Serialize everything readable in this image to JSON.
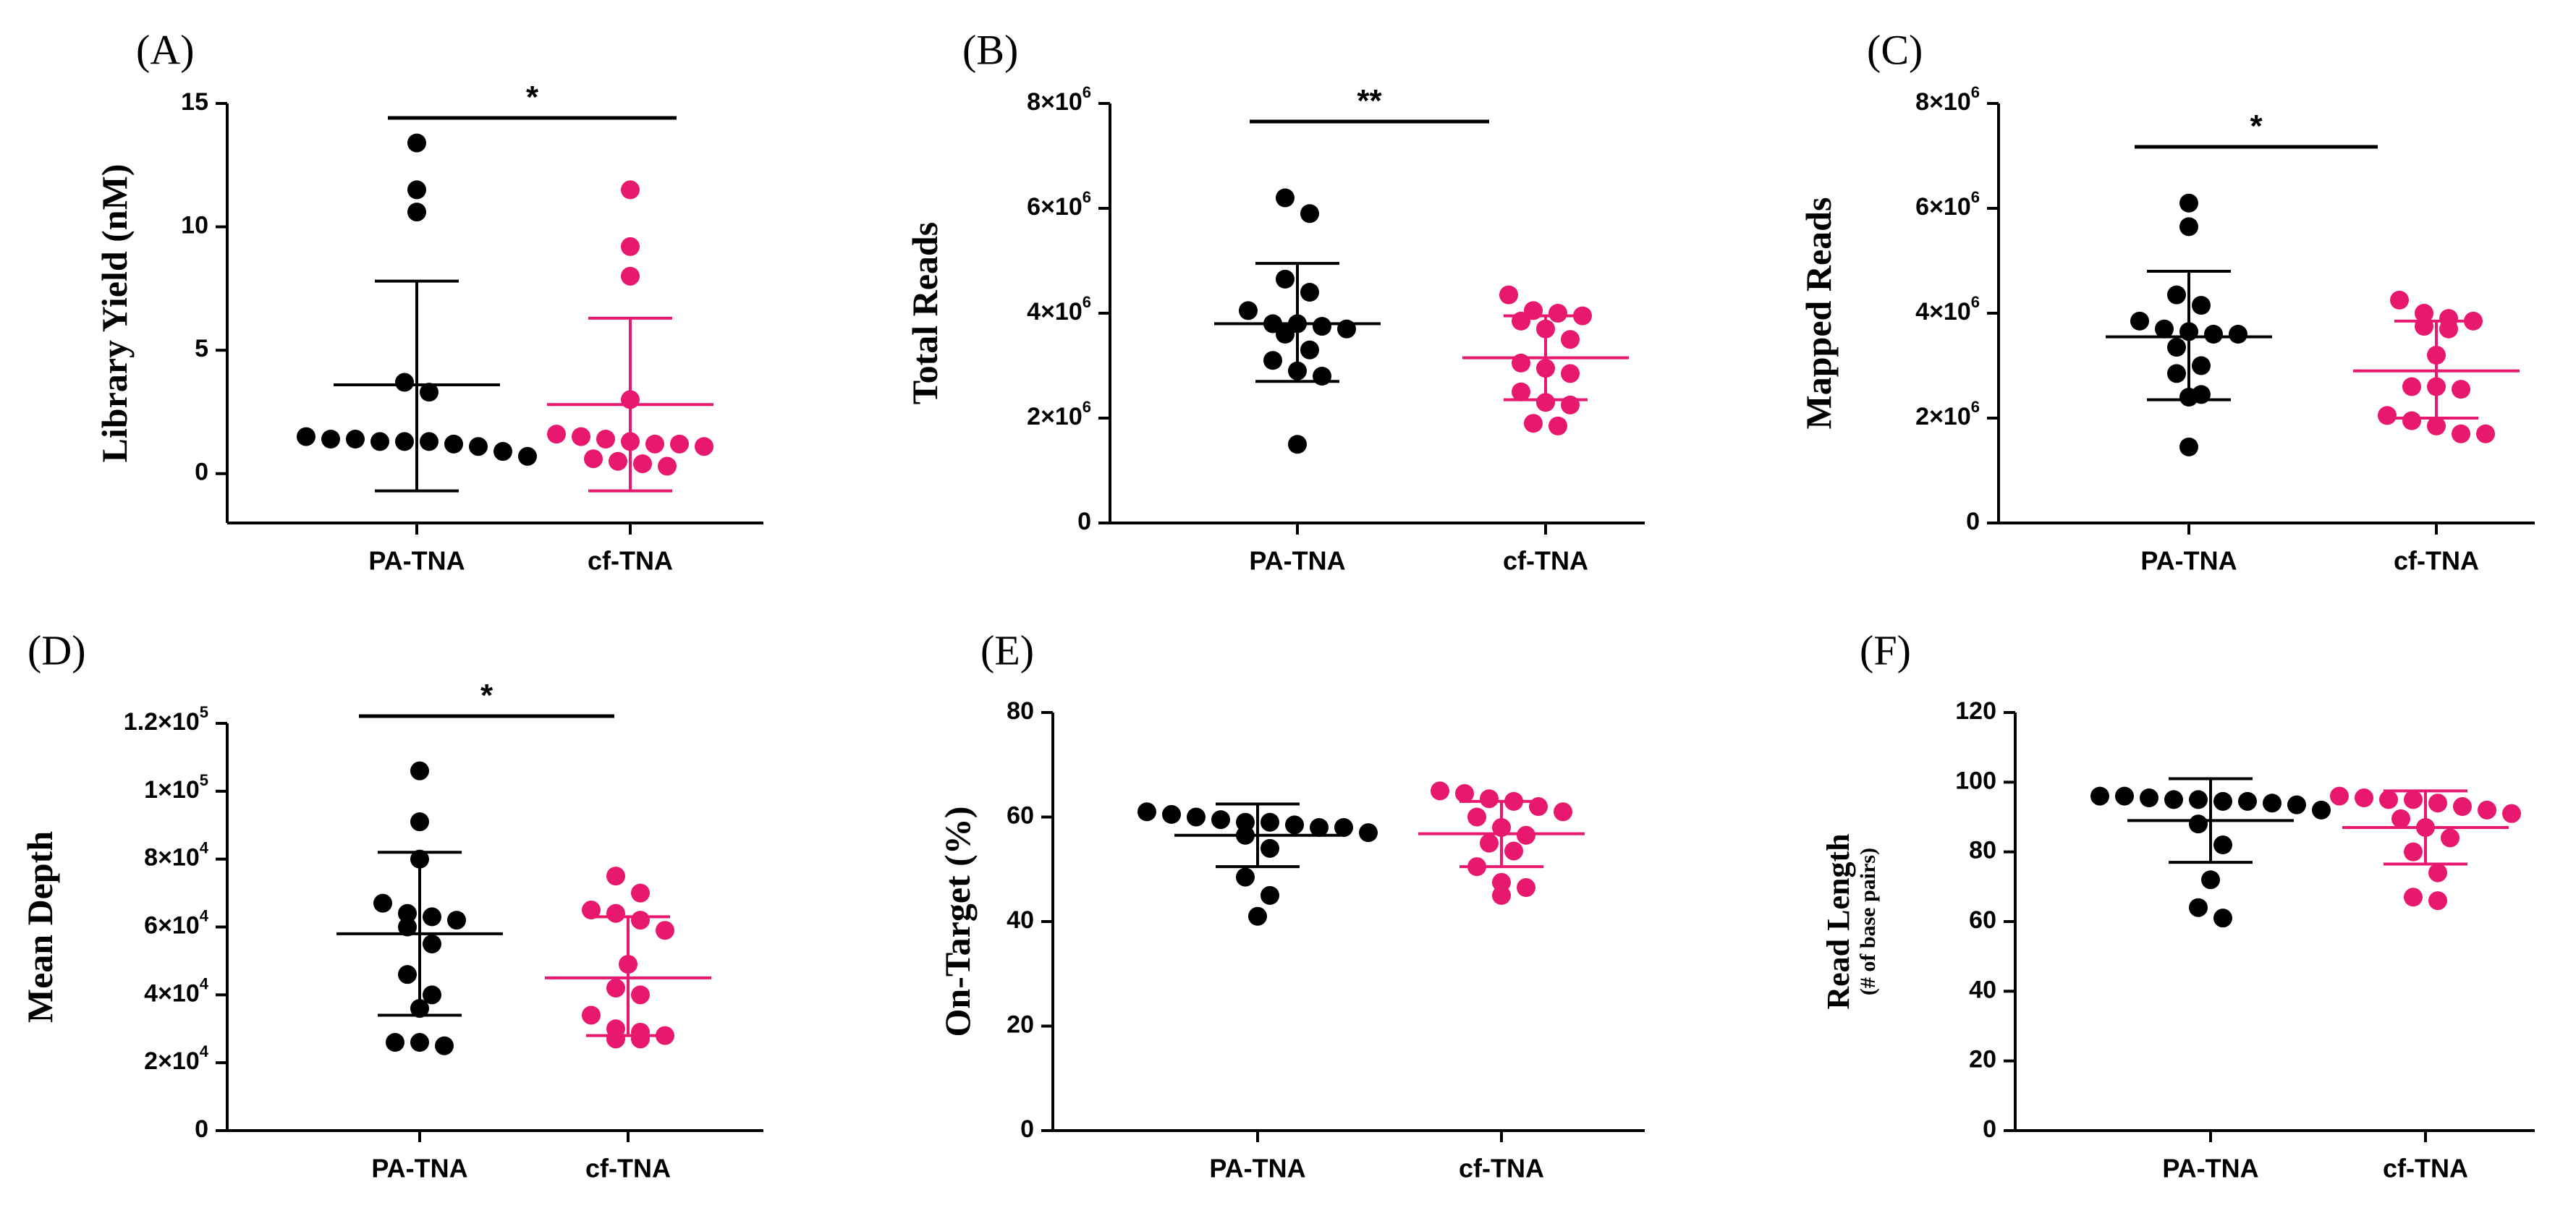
{
  "chart_data": [
    {
      "panel": "(A)",
      "type": "scatter",
      "ylabel": "Library Yield  (nM)",
      "ylim": [
        -2,
        15
      ],
      "yticks": [
        0,
        5,
        10,
        15
      ],
      "ytick_labels": [
        "0",
        "5",
        "10",
        "15"
      ],
      "categories": [
        "PA-TNA",
        "cf-TNA"
      ],
      "series": [
        {
          "name": "PA-TNA",
          "color": "#000000",
          "mean": 3.6,
          "sd_lower": -0.7,
          "sd_upper": 7.8,
          "values": [
            13.4,
            11.5,
            10.6,
            3.7,
            3.3,
            1.5,
            1.4,
            1.4,
            1.3,
            1.3,
            1.3,
            1.2,
            1.1,
            0.9,
            0.7
          ]
        },
        {
          "name": "cf-TNA",
          "color": "#e8186f",
          "mean": 2.8,
          "sd_lower": -0.7,
          "sd_upper": 6.3,
          "values": [
            11.5,
            9.2,
            8.0,
            3.0,
            1.6,
            1.5,
            1.4,
            1.3,
            1.2,
            1.2,
            1.1,
            0.6,
            0.5,
            0.4,
            0.3
          ]
        }
      ],
      "significance": "*"
    },
    {
      "panel": "(B)",
      "type": "scatter",
      "ylabel": "Total Reads",
      "ylim": [
        0,
        8000000
      ],
      "yticks": [
        0,
        2000000,
        4000000,
        6000000,
        8000000
      ],
      "ytick_labels": [
        "0",
        "2×10^6",
        "4×10^6",
        "6×10^6",
        "8×10^6"
      ],
      "categories": [
        "PA-TNA",
        "cf-TNA"
      ],
      "series": [
        {
          "name": "PA-TNA",
          "color": "#000000",
          "mean": 3800000,
          "sd_lower": 2700000,
          "sd_upper": 4950000,
          "values": [
            6200000,
            5900000,
            4650000,
            4400000,
            4050000,
            3800000,
            3800000,
            3750000,
            3700000,
            3600000,
            3300000,
            3100000,
            2900000,
            2800000,
            1500000
          ]
        },
        {
          "name": "cf-TNA",
          "color": "#e8186f",
          "mean": 3150000,
          "sd_lower": 2350000,
          "sd_upper": 3950000,
          "values": [
            4350000,
            4050000,
            4000000,
            3950000,
            3850000,
            3700000,
            3500000,
            3050000,
            2950000,
            2850000,
            2500000,
            2300000,
            2250000,
            1900000,
            1850000
          ]
        }
      ],
      "significance": "**"
    },
    {
      "panel": "(C)",
      "type": "scatter",
      "ylabel": "Mapped Reads",
      "ylim": [
        0,
        8000000
      ],
      "yticks": [
        0,
        2000000,
        4000000,
        6000000,
        8000000
      ],
      "ytick_labels": [
        "0",
        "2×10^6",
        "4×10^6",
        "6×10^6",
        "8×10^6"
      ],
      "categories": [
        "PA-TNA",
        "cf-TNA"
      ],
      "series": [
        {
          "name": "PA-TNA",
          "color": "#000000",
          "mean": 3550000,
          "sd_lower": 2350000,
          "sd_upper": 4800000,
          "values": [
            6100000,
            5650000,
            4350000,
            4150000,
            3850000,
            3700000,
            3650000,
            3600000,
            3600000,
            3350000,
            3000000,
            2850000,
            2450000,
            2400000,
            1450000
          ]
        },
        {
          "name": "cf-TNA",
          "color": "#e8186f",
          "mean": 2900000,
          "sd_lower": 2000000,
          "sd_upper": 3850000,
          "values": [
            4250000,
            4000000,
            3900000,
            3850000,
            3750000,
            3700000,
            3200000,
            2600000,
            2600000,
            2550000,
            2050000,
            1950000,
            1850000,
            1700000,
            1700000
          ]
        }
      ],
      "significance": "*"
    },
    {
      "panel": "(D)",
      "type": "scatter",
      "ylabel": "Mean Depth",
      "ylim": [
        0,
        120000
      ],
      "yticks": [
        0,
        20000,
        40000,
        60000,
        80000,
        100000,
        120000
      ],
      "ytick_labels": [
        "0",
        "2×10^4",
        "4×10^4",
        "6×10^4",
        "8×10^4",
        "1×10^5",
        "1.2×10^5"
      ],
      "categories": [
        "PA-TNA",
        "cf-TNA"
      ],
      "series": [
        {
          "name": "PA-TNA",
          "color": "#000000",
          "mean": 58000,
          "sd_lower": 34000,
          "sd_upper": 82000,
          "values": [
            106000,
            91000,
            80000,
            67000,
            64000,
            63000,
            62000,
            60000,
            55000,
            46000,
            40000,
            36000,
            26000,
            26000,
            25000
          ]
        },
        {
          "name": "cf-TNA",
          "color": "#e8186f",
          "mean": 45000,
          "sd_lower": 28000,
          "sd_upper": 63000,
          "values": [
            75000,
            70000,
            65000,
            64000,
            62000,
            59000,
            49000,
            42000,
            40000,
            34000,
            30000,
            29000,
            28000,
            27000,
            27000
          ]
        }
      ],
      "significance": "*"
    },
    {
      "panel": "(E)",
      "type": "scatter",
      "ylabel": "On-Target (%)",
      "ylim": [
        0,
        80
      ],
      "yticks": [
        0,
        20,
        40,
        60,
        80
      ],
      "ytick_labels": [
        "0",
        "20",
        "40",
        "60",
        "80"
      ],
      "categories": [
        "PA-TNA",
        "cf-TNA"
      ],
      "series": [
        {
          "name": "PA-TNA",
          "color": "#000000",
          "mean": 56.5,
          "sd_lower": 50.5,
          "sd_upper": 62.5,
          "values": [
            61,
            60.5,
            60,
            59.5,
            59,
            59,
            58.5,
            58,
            58,
            57,
            56.5,
            54,
            48.5,
            45,
            41
          ]
        },
        {
          "name": "cf-TNA",
          "color": "#e8186f",
          "mean": 56.8,
          "sd_lower": 50.5,
          "sd_upper": 63,
          "values": [
            65,
            64.5,
            63.5,
            63,
            62,
            61,
            60,
            58,
            56.5,
            55,
            53.5,
            50.5,
            47.5,
            46.5,
            45
          ]
        }
      ],
      "significance": ""
    },
    {
      "panel": "(F)",
      "type": "scatter",
      "ylabel": "Read Length",
      "ylabel_sub": "(# of base pairs)",
      "ylim": [
        0,
        120
      ],
      "yticks": [
        0,
        20,
        40,
        60,
        80,
        100,
        120
      ],
      "ytick_labels": [
        "0",
        "20",
        "40",
        "60",
        "80",
        "100",
        "120"
      ],
      "categories": [
        "PA-TNA",
        "cf-TNA"
      ],
      "series": [
        {
          "name": "PA-TNA",
          "color": "#000000",
          "mean": 89,
          "sd_lower": 77,
          "sd_upper": 101,
          "values": [
            96,
            96,
            95.5,
            95,
            95,
            94.5,
            94.5,
            94,
            93.5,
            92,
            88,
            82,
            72,
            64,
            61
          ]
        },
        {
          "name": "cf-TNA",
          "color": "#e8186f",
          "mean": 87,
          "sd_lower": 76.5,
          "sd_upper": 97.5,
          "values": [
            96,
            95.5,
            95,
            95,
            94,
            93,
            92,
            91,
            89.5,
            87,
            84,
            80,
            74,
            67,
            66
          ]
        }
      ],
      "significance": ""
    }
  ]
}
